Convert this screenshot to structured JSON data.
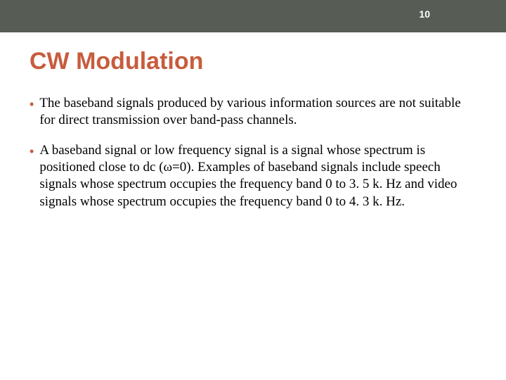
{
  "header": {
    "page_number": "10",
    "bar_color": "#575d55",
    "page_number_color": "#ffffff"
  },
  "title": {
    "text": "CW Modulation",
    "color": "#c75c3d",
    "fontsize": 34,
    "font_family": "Arial"
  },
  "bullets": [
    {
      "text": "The baseband signals produced by various information sources are not suitable for direct transmission over band-pass channels."
    },
    {
      "text": "A baseband signal  or low frequency signal is a signal whose spectrum is positioned close to dc (ω=0). Examples of baseband signals include speech signals whose spectrum occupies the frequency band 0 to 3. 5 k. Hz and video signals whose spectrum occupies the frequency band 0 to 4. 3 k. Hz."
    }
  ],
  "bullet_style": {
    "marker": "•",
    "marker_color": "#c75c3d",
    "text_color": "#000000",
    "fontsize": 19,
    "font_family": "Georgia"
  },
  "background_color": "#ffffff"
}
